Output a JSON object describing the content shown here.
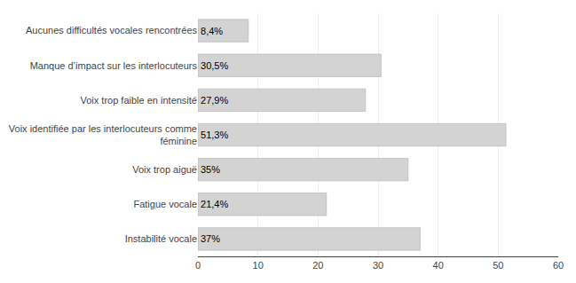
{
  "chart_data": {
    "type": "bar",
    "orientation": "horizontal",
    "categories": [
      "Instabilité vocale",
      "Fatigue vocale",
      "Voix trop aiguë",
      "Voix identifiée par les interlocuteurs comme\nféminine",
      "Voix trop faible en intensité",
      "Manque d’impact sur les interlocuteurs",
      "Aucunes difficultés vocales rencontrées"
    ],
    "values": [
      37,
      21.4,
      35,
      51.3,
      27.9,
      30.5,
      8.4
    ],
    "value_labels": [
      "37%",
      "21,4%",
      "35%",
      "51,3%",
      "27,9%",
      "30,5%",
      "8,4%"
    ],
    "data_labels": true,
    "color": "#d3d3d3",
    "xlim": [
      0,
      60
    ],
    "xticks": [
      0,
      10,
      20,
      30,
      40,
      50,
      60
    ],
    "grid": true
  }
}
